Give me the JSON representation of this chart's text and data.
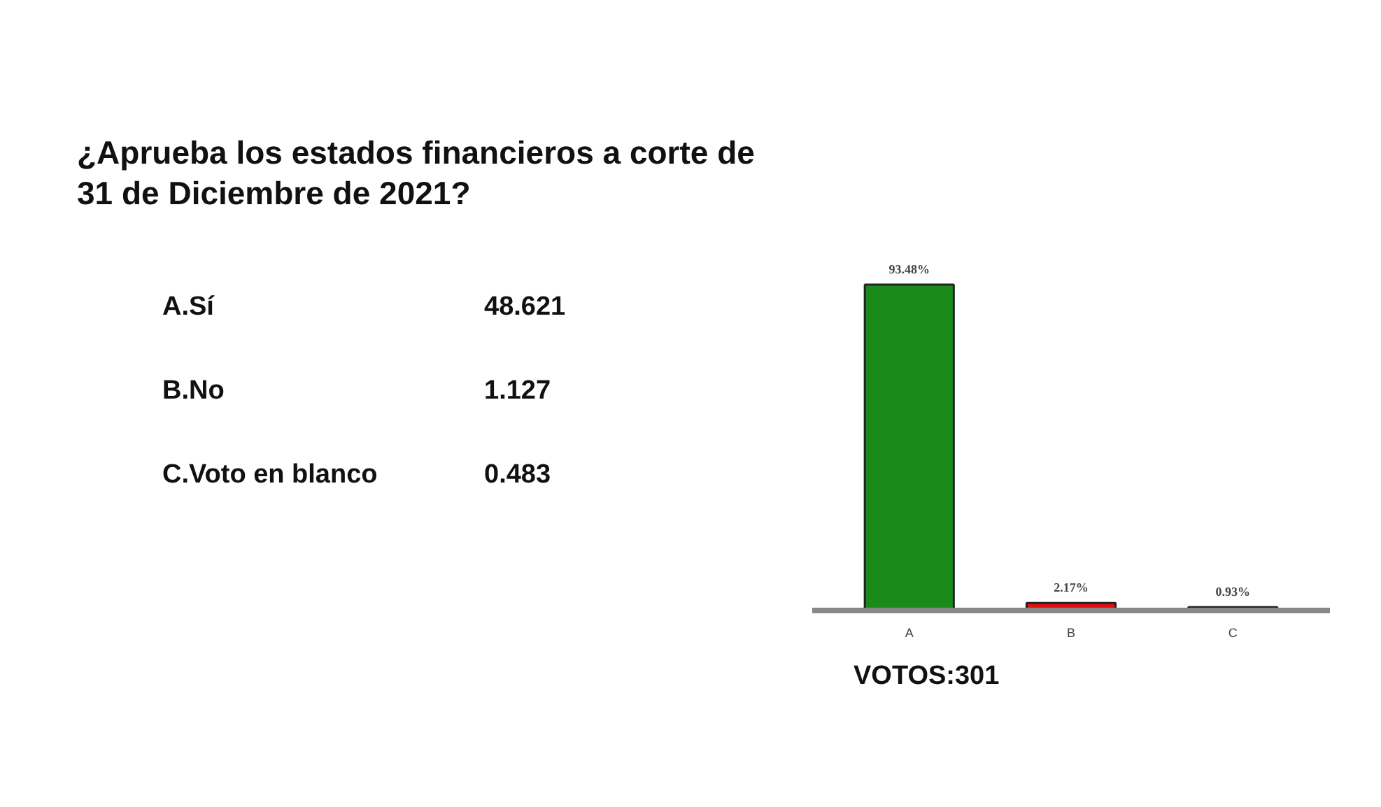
{
  "chart_data": {
    "type": "bar",
    "title": "¿Aprueba los estados financieros a corte de 31 de Diciembre de 2021?",
    "categories": [
      "A",
      "B",
      "C"
    ],
    "values": [
      93.48,
      2.17,
      0.93
    ],
    "colors": [
      "#1a8a1a",
      "#e01010",
      "#d8d020"
    ],
    "value_labels": [
      "93.48%",
      "2.17%",
      "0.93%"
    ],
    "annotations": [
      "A.Sí",
      "48.621",
      "B.No",
      "1.127",
      "C.Voto en blanco",
      "0.483",
      "VOTOS:301"
    ]
  }
}
